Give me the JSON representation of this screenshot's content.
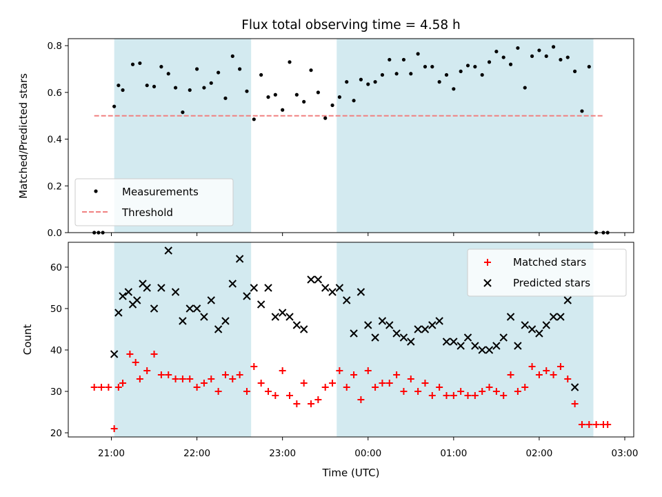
{
  "chart_data": [
    {
      "type": "scatter",
      "title": "Flux total observing time = 4.58 h",
      "xlabel": "",
      "ylabel": "Matched/Predicted stars",
      "ylim": [
        0,
        0.83
      ],
      "yticks": [
        "0.0",
        "0.2",
        "0.4",
        "0.6",
        "0.8"
      ],
      "ytick_values": [
        0,
        0.2,
        0.4,
        0.6,
        0.8
      ],
      "xlim_hours": [
        20.5,
        24.0,
        3.05
      ],
      "legend_position": "lower-left",
      "shaded_spans": [
        [
          "21:02",
          "22:38"
        ],
        [
          "23:38",
          "02:38"
        ]
      ],
      "shade_color": "#d3eaf0",
      "threshold": {
        "name": "Threshold",
        "value": 0.5,
        "x_range": [
          "20:48",
          "02:45"
        ],
        "color": "#f08080"
      },
      "series": [
        {
          "name": "Measurements",
          "color": "#000000",
          "x": [
            "20:48",
            "20:51",
            "20:54",
            "21:02",
            "21:05",
            "21:08",
            "21:15",
            "21:20",
            "21:25",
            "21:30",
            "21:35",
            "21:40",
            "21:45",
            "21:50",
            "21:55",
            "22:00",
            "22:05",
            "22:10",
            "22:15",
            "22:20",
            "22:25",
            "22:30",
            "22:35",
            "22:40",
            "22:45",
            "22:50",
            "22:55",
            "23:00",
            "23:05",
            "23:10",
            "23:15",
            "23:20",
            "23:25",
            "23:30",
            "23:35",
            "23:40",
            "23:45",
            "23:50",
            "23:55",
            "00:00",
            "00:05",
            "00:10",
            "00:15",
            "00:20",
            "00:25",
            "00:30",
            "00:35",
            "00:40",
            "00:45",
            "00:50",
            "00:55",
            "01:00",
            "01:05",
            "01:10",
            "01:15",
            "01:20",
            "01:25",
            "01:30",
            "01:35",
            "01:40",
            "01:45",
            "01:50",
            "01:55",
            "02:00",
            "02:05",
            "02:10",
            "02:15",
            "02:20",
            "02:25",
            "02:30",
            "02:35",
            "02:40",
            "02:45",
            "02:48"
          ],
          "y": [
            0.0,
            0.0,
            0.0,
            0.54,
            0.63,
            0.61,
            0.72,
            0.725,
            0.63,
            0.625,
            0.71,
            0.68,
            0.62,
            0.515,
            0.61,
            0.7,
            0.62,
            0.64,
            0.685,
            0.575,
            0.755,
            0.7,
            0.605,
            0.485,
            0.675,
            0.58,
            0.59,
            0.525,
            0.73,
            0.59,
            0.56,
            0.695,
            0.6,
            0.49,
            0.545,
            0.58,
            0.645,
            0.565,
            0.655,
            0.635,
            0.645,
            0.675,
            0.74,
            0.68,
            0.74,
            0.68,
            0.765,
            0.71,
            0.71,
            0.645,
            0.675,
            0.615,
            0.69,
            0.715,
            0.71,
            0.675,
            0.73,
            0.775,
            0.75,
            0.72,
            0.79,
            0.62,
            0.755,
            0.78,
            0.755,
            0.795,
            0.74,
            0.75,
            0.69,
            0.52,
            0.71,
            0.0,
            0.0,
            0.0
          ]
        }
      ]
    },
    {
      "type": "scatter",
      "title": "",
      "xlabel": "Time (UTC)",
      "ylabel": "Count",
      "ylim": [
        19,
        66
      ],
      "yticks": [
        "20",
        "30",
        "40",
        "50",
        "60"
      ],
      "ytick_values": [
        20,
        30,
        40,
        50,
        60
      ],
      "xticks": [
        "21:00",
        "22:00",
        "23:00",
        "00:00",
        "01:00",
        "02:00",
        "03:00"
      ],
      "legend_position": "upper-right",
      "series": [
        {
          "name": "Matched stars",
          "color": "#ff0000",
          "marker": "plus",
          "x": [
            "20:48",
            "20:53",
            "20:58",
            "21:02",
            "21:05",
            "21:08",
            "21:13",
            "21:17",
            "21:20",
            "21:25",
            "21:30",
            "21:35",
            "21:40",
            "21:45",
            "21:50",
            "21:55",
            "22:00",
            "22:05",
            "22:10",
            "22:15",
            "22:20",
            "22:25",
            "22:30",
            "22:35",
            "22:40",
            "22:45",
            "22:50",
            "22:55",
            "23:00",
            "23:05",
            "23:10",
            "23:15",
            "23:20",
            "23:25",
            "23:30",
            "23:35",
            "23:40",
            "23:45",
            "23:50",
            "23:55",
            "00:00",
            "00:05",
            "00:10",
            "00:15",
            "00:20",
            "00:25",
            "00:30",
            "00:35",
            "00:40",
            "00:45",
            "00:50",
            "00:55",
            "01:00",
            "01:05",
            "01:10",
            "01:15",
            "01:20",
            "01:25",
            "01:30",
            "01:35",
            "01:40",
            "01:45",
            "01:50",
            "01:55",
            "02:00",
            "02:05",
            "02:10",
            "02:15",
            "02:20",
            "02:25",
            "02:30",
            "02:35",
            "02:40",
            "02:45",
            "02:48"
          ],
          "y": [
            31,
            31,
            31,
            21,
            31,
            32,
            39,
            37,
            33,
            35,
            39,
            34,
            34,
            33,
            33,
            33,
            31,
            32,
            33,
            30,
            34,
            33,
            34,
            30,
            36,
            32,
            30,
            29,
            35,
            29,
            27,
            32,
            27,
            28,
            31,
            32,
            35,
            31,
            34,
            28,
            35,
            31,
            32,
            32,
            34,
            30,
            33,
            30,
            32,
            29,
            31,
            29,
            29,
            30,
            29,
            29,
            30,
            31,
            30,
            29,
            34,
            30,
            31,
            36,
            34,
            35,
            34,
            36,
            33,
            27,
            22,
            22,
            22,
            22,
            22
          ],
          "note": ""
        },
        {
          "name": "Predicted stars",
          "color": "#000000",
          "marker": "x",
          "x": [
            "21:02",
            "21:05",
            "21:08",
            "21:12",
            "21:15",
            "21:18",
            "21:22",
            "21:25",
            "21:30",
            "21:35",
            "21:40",
            "21:45",
            "21:50",
            "21:55",
            "22:00",
            "22:05",
            "22:10",
            "22:15",
            "22:20",
            "22:25",
            "22:30",
            "22:35",
            "22:40",
            "22:45",
            "22:50",
            "22:55",
            "23:00",
            "23:05",
            "23:10",
            "23:15",
            "23:20",
            "23:25",
            "23:30",
            "23:35",
            "23:40",
            "23:45",
            "23:50",
            "23:55",
            "00:00",
            "00:05",
            "00:10",
            "00:15",
            "00:20",
            "00:25",
            "00:30",
            "00:35",
            "00:40",
            "00:45",
            "00:50",
            "00:55",
            "01:00",
            "01:05",
            "01:10",
            "01:15",
            "01:20",
            "01:25",
            "01:30",
            "01:35",
            "01:40",
            "01:45",
            "01:50",
            "01:55",
            "02:00",
            "02:05",
            "02:10",
            "02:15",
            "02:20",
            "02:25",
            "02:30",
            "02:35"
          ],
          "y": [
            39,
            49,
            53,
            54,
            51,
            52,
            56,
            55,
            50,
            55,
            64,
            54,
            47,
            50,
            50,
            48,
            52,
            45,
            47,
            56,
            62,
            53,
            55,
            51,
            55,
            48,
            49,
            48,
            46,
            45,
            57,
            57,
            55,
            54,
            55,
            52,
            44,
            54,
            46,
            43,
            47,
            46,
            44,
            43,
            42,
            45,
            45,
            46,
            47,
            42,
            42,
            41,
            43,
            41,
            40,
            40,
            41,
            43,
            48,
            41,
            46,
            45,
            44,
            46,
            48,
            48,
            52,
            31,
            null,
            null
          ]
        }
      ]
    }
  ]
}
